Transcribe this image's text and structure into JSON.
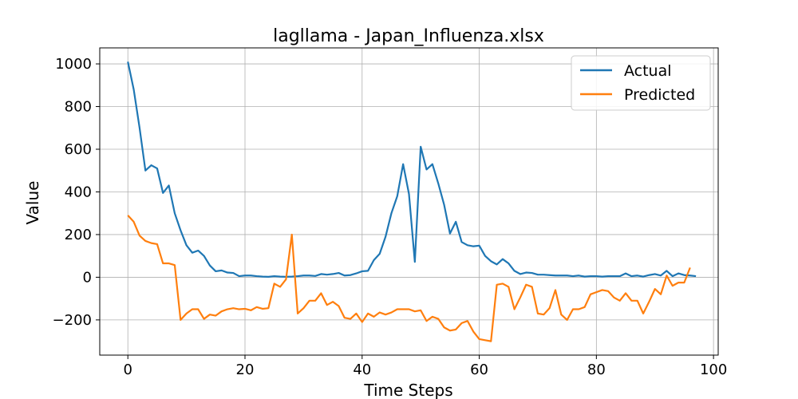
{
  "chart_data": {
    "type": "line",
    "title": "lagllama - Japan_Influenza.xlsx",
    "xlabel": "Time Steps",
    "ylabel": "Value",
    "xlim": [
      -4.8,
      100.8
    ],
    "ylim": [
      -365,
      1075
    ],
    "xticks": [
      0,
      20,
      40,
      60,
      80,
      100
    ],
    "yticks": [
      -200,
      0,
      200,
      400,
      600,
      800,
      1000
    ],
    "xtick_labels": [
      "0",
      "20",
      "40",
      "60",
      "80",
      "100"
    ],
    "ytick_labels": [
      "−200",
      "0",
      "200",
      "400",
      "600",
      "800",
      "1000"
    ],
    "grid": true,
    "legend_position": "top-right",
    "series": [
      {
        "name": "Actual",
        "color": "#1f77b4",
        "values": [
          1010,
          880,
          700,
          500,
          525,
          510,
          395,
          430,
          300,
          220,
          150,
          115,
          125,
          100,
          55,
          28,
          32,
          22,
          20,
          5,
          8,
          8,
          5,
          3,
          2,
          5,
          3,
          2,
          3,
          5,
          8,
          8,
          6,
          15,
          12,
          15,
          20,
          8,
          10,
          18,
          28,
          30,
          80,
          110,
          190,
          300,
          380,
          530,
          390,
          72,
          612,
          505,
          530,
          440,
          340,
          205,
          260,
          165,
          150,
          145,
          148,
          100,
          75,
          60,
          85,
          65,
          30,
          15,
          22,
          20,
          12,
          12,
          10,
          8,
          8,
          8,
          5,
          8,
          3,
          5,
          5,
          3,
          5,
          5,
          5,
          18,
          5,
          8,
          3,
          10,
          15,
          8,
          30,
          5,
          18,
          10,
          8,
          5
        ]
      },
      {
        "name": "Predicted",
        "color": "#ff7f0e",
        "values": [
          290,
          260,
          195,
          170,
          160,
          155,
          65,
          65,
          57,
          -200,
          -170,
          -150,
          -150,
          -195,
          -175,
          -180,
          -160,
          -150,
          -145,
          -150,
          -148,
          -155,
          -140,
          -148,
          -145,
          -30,
          -45,
          -10,
          200,
          -170,
          -145,
          -110,
          -110,
          -75,
          -130,
          -115,
          -135,
          -190,
          -195,
          -170,
          -210,
          -170,
          -185,
          -165,
          -175,
          -165,
          -150,
          -150,
          -150,
          -160,
          -155,
          -205,
          -185,
          -195,
          -235,
          -250,
          -245,
          -215,
          -205,
          -255,
          -290,
          -295,
          -300,
          -35,
          -30,
          -45,
          -150,
          -95,
          -35,
          -45,
          -170,
          -175,
          -145,
          -60,
          -175,
          -200,
          -150,
          -150,
          -140,
          -80,
          -70,
          -60,
          -65,
          -95,
          -110,
          -75,
          -110,
          -110,
          -170,
          -115,
          -55,
          -80,
          8,
          -40,
          -25,
          -25,
          45
        ]
      }
    ]
  }
}
